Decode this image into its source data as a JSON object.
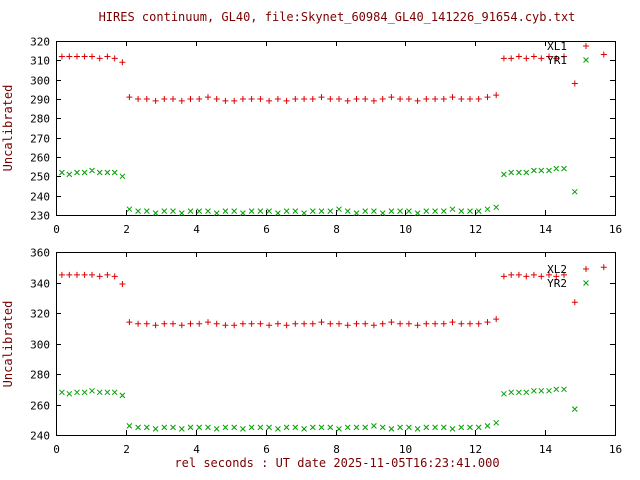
{
  "title": "HIRES continuum, GL40, file:Skynet_60984_GL40_141226_91654.cyb.txt",
  "xlabel": "rel seconds : UT date 2025-11-05T16:23:41.000",
  "colors": {
    "red": "#dd0000",
    "green": "#00a000",
    "label": "#7a0000",
    "axis": "#000000"
  },
  "chart_data": [
    {
      "type": "scatter",
      "panel": "top",
      "ylabel": "Uncalibrated",
      "xlim": [
        0,
        16
      ],
      "ylim": [
        230,
        320
      ],
      "xticks": [
        0,
        2,
        4,
        6,
        8,
        10,
        12,
        14,
        16
      ],
      "yticks": [
        230,
        240,
        250,
        260,
        270,
        280,
        290,
        300,
        310,
        320
      ],
      "legend": [
        {
          "label": "XL1",
          "marker": "plus",
          "color": "red"
        },
        {
          "label": "YR1",
          "marker": "cross",
          "color": "green"
        }
      ],
      "series": [
        {
          "name": "XL1",
          "marker": "plus",
          "color": "red",
          "x": [
            0.17,
            0.38,
            0.6,
            0.82,
            1.03,
            1.25,
            1.47,
            1.68,
            1.9,
            2.1,
            2.35,
            2.6,
            2.85,
            3.1,
            3.35,
            3.6,
            3.85,
            4.1,
            4.35,
            4.6,
            4.85,
            5.1,
            5.35,
            5.6,
            5.85,
            6.1,
            6.35,
            6.6,
            6.85,
            7.1,
            7.35,
            7.6,
            7.85,
            8.1,
            8.35,
            8.6,
            8.85,
            9.1,
            9.35,
            9.6,
            9.85,
            10.1,
            10.35,
            10.6,
            10.85,
            11.1,
            11.35,
            11.6,
            11.85,
            12.1,
            12.35,
            12.6,
            12.82,
            13.03,
            13.25,
            13.46,
            13.68,
            13.89,
            14.11,
            14.32,
            14.54,
            14.85,
            15.68
          ],
          "y": [
            312,
            312,
            312,
            312,
            312,
            311,
            312,
            311,
            309,
            291,
            290,
            290,
            289,
            290,
            290,
            289,
            290,
            290,
            291,
            290,
            289,
            289,
            290,
            290,
            290,
            289,
            290,
            289,
            290,
            290,
            290,
            291,
            290,
            290,
            289,
            290,
            290,
            289,
            290,
            291,
            290,
            290,
            289,
            290,
            290,
            290,
            291,
            290,
            290,
            290,
            291,
            292,
            311,
            311,
            312,
            311,
            312,
            311,
            312,
            311,
            312,
            298,
            313
          ]
        },
        {
          "name": "YR1",
          "marker": "cross",
          "color": "green",
          "x": [
            0.17,
            0.38,
            0.6,
            0.82,
            1.03,
            1.25,
            1.47,
            1.68,
            1.9,
            2.1,
            2.35,
            2.6,
            2.85,
            3.1,
            3.35,
            3.6,
            3.85,
            4.1,
            4.35,
            4.6,
            4.85,
            5.1,
            5.35,
            5.6,
            5.85,
            6.1,
            6.35,
            6.6,
            6.85,
            7.1,
            7.35,
            7.6,
            7.85,
            8.1,
            8.35,
            8.6,
            8.85,
            9.1,
            9.35,
            9.6,
            9.85,
            10.1,
            10.35,
            10.6,
            10.85,
            11.1,
            11.35,
            11.6,
            11.85,
            12.1,
            12.35,
            12.6,
            12.82,
            13.03,
            13.25,
            13.46,
            13.68,
            13.89,
            14.11,
            14.32,
            14.54,
            14.85
          ],
          "y": [
            252,
            251,
            252,
            252,
            253,
            252,
            252,
            252,
            250,
            233,
            232,
            232,
            231,
            232,
            232,
            231,
            232,
            232,
            232,
            231,
            232,
            232,
            231,
            232,
            232,
            232,
            231,
            232,
            232,
            231,
            232,
            232,
            232,
            233,
            232,
            231,
            232,
            232,
            231,
            232,
            232,
            232,
            231,
            232,
            232,
            232,
            233,
            232,
            232,
            232,
            233,
            234,
            251,
            252,
            252,
            252,
            253,
            253,
            253,
            254,
            254,
            242
          ]
        }
      ]
    },
    {
      "type": "scatter",
      "panel": "bottom",
      "ylabel": "Uncalibrated",
      "xlim": [
        0,
        16
      ],
      "ylim": [
        240,
        360
      ],
      "xticks": [
        0,
        2,
        4,
        6,
        8,
        10,
        12,
        14,
        16
      ],
      "yticks": [
        240,
        260,
        280,
        300,
        320,
        340,
        360
      ],
      "legend": [
        {
          "label": "XL2",
          "marker": "plus",
          "color": "red"
        },
        {
          "label": "YR2",
          "marker": "cross",
          "color": "green"
        }
      ],
      "series": [
        {
          "name": "XL2",
          "marker": "plus",
          "color": "red",
          "x": [
            0.17,
            0.38,
            0.6,
            0.82,
            1.03,
            1.25,
            1.47,
            1.68,
            1.9,
            2.1,
            2.35,
            2.6,
            2.85,
            3.1,
            3.35,
            3.6,
            3.85,
            4.1,
            4.35,
            4.6,
            4.85,
            5.1,
            5.35,
            5.6,
            5.85,
            6.1,
            6.35,
            6.6,
            6.85,
            7.1,
            7.35,
            7.6,
            7.85,
            8.1,
            8.35,
            8.6,
            8.85,
            9.1,
            9.35,
            9.6,
            9.85,
            10.1,
            10.35,
            10.6,
            10.85,
            11.1,
            11.35,
            11.6,
            11.85,
            12.1,
            12.35,
            12.6,
            12.82,
            13.03,
            13.25,
            13.46,
            13.68,
            13.89,
            14.11,
            14.32,
            14.54,
            14.85,
            15.68
          ],
          "y": [
            345,
            345,
            345,
            345,
            345,
            344,
            345,
            344,
            339,
            314,
            313,
            313,
            312,
            313,
            313,
            312,
            313,
            313,
            314,
            313,
            312,
            312,
            313,
            313,
            313,
            312,
            313,
            312,
            313,
            313,
            313,
            314,
            313,
            313,
            312,
            313,
            313,
            312,
            313,
            314,
            313,
            313,
            312,
            313,
            313,
            313,
            314,
            313,
            313,
            313,
            314,
            316,
            344,
            345,
            345,
            344,
            345,
            344,
            345,
            344,
            345,
            327,
            350
          ]
        },
        {
          "name": "YR2",
          "marker": "cross",
          "color": "green",
          "x": [
            0.17,
            0.38,
            0.6,
            0.82,
            1.03,
            1.25,
            1.47,
            1.68,
            1.9,
            2.1,
            2.35,
            2.6,
            2.85,
            3.1,
            3.35,
            3.6,
            3.85,
            4.1,
            4.35,
            4.6,
            4.85,
            5.1,
            5.35,
            5.6,
            5.85,
            6.1,
            6.35,
            6.6,
            6.85,
            7.1,
            7.35,
            7.6,
            7.85,
            8.1,
            8.35,
            8.6,
            8.85,
            9.1,
            9.35,
            9.6,
            9.85,
            10.1,
            10.35,
            10.6,
            10.85,
            11.1,
            11.35,
            11.6,
            11.85,
            12.1,
            12.35,
            12.6,
            12.82,
            13.03,
            13.25,
            13.46,
            13.68,
            13.89,
            14.11,
            14.32,
            14.54,
            14.85
          ],
          "y": [
            268,
            267,
            268,
            268,
            269,
            268,
            268,
            268,
            266,
            246,
            245,
            245,
            244,
            245,
            245,
            244,
            245,
            245,
            245,
            244,
            245,
            245,
            244,
            245,
            245,
            245,
            244,
            245,
            245,
            244,
            245,
            245,
            245,
            244,
            245,
            245,
            245,
            246,
            245,
            244,
            245,
            245,
            244,
            245,
            245,
            245,
            244,
            245,
            245,
            245,
            246,
            248,
            267,
            268,
            268,
            268,
            269,
            269,
            269,
            270,
            270,
            257
          ]
        }
      ]
    }
  ]
}
